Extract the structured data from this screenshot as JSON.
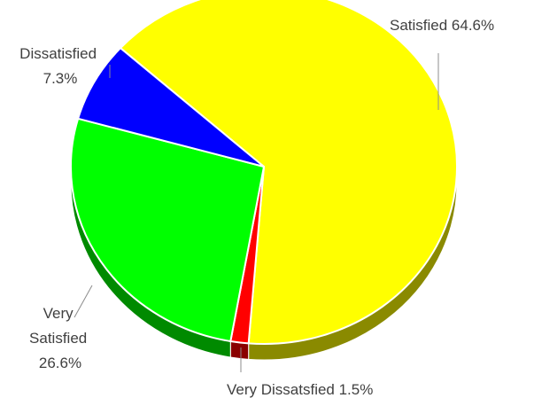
{
  "chart_data": {
    "type": "pie",
    "slices": [
      {
        "name": "Satisfied",
        "value": 64.6,
        "label_pct": "64.6%",
        "color": "#ffff00",
        "side_color": "#8a8a00"
      },
      {
        "name": "Very Dissatsfied",
        "value": 1.5,
        "label_pct": "1.5%",
        "color": "#ff0000",
        "side_color": "#8a0000"
      },
      {
        "name": "Very Satisfied",
        "value": 26.6,
        "label_pct": "26.6%",
        "color": "#00ff00",
        "side_color": "#008a00"
      },
      {
        "name": "Dissatisfied",
        "value": 7.3,
        "label_pct": "7.3%",
        "color": "#0000ff",
        "side_color": "#00008a"
      }
    ],
    "style": "3d-pie",
    "legend": "none"
  },
  "labels": {
    "satisfied": "Satisfied 64.6%",
    "very_dissatisfied": "Very Dissatsfied 1.5%",
    "very_satisfied_line1": "Very",
    "very_satisfied_line2": "Satisfied",
    "very_satisfied_line3": "26.6%",
    "dissatisfied_line1": "Dissatisfied",
    "dissatisfied_line2": "7.3%"
  }
}
